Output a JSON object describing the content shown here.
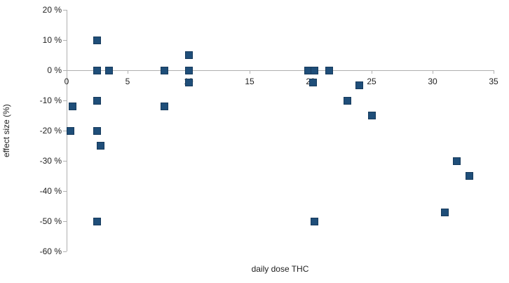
{
  "chart_data": {
    "type": "scatter",
    "title": "",
    "xlabel": "daily dose THC",
    "ylabel": "effect size (%)",
    "xlim": [
      0,
      35
    ],
    "ylim": [
      -60,
      20
    ],
    "x_ticks": [
      0,
      5,
      10,
      15,
      20,
      25,
      30,
      35
    ],
    "y_ticks": [
      20,
      10,
      0,
      -10,
      -20,
      -30,
      -40,
      -50,
      -60
    ],
    "y_tick_suffix": " %",
    "grid": false,
    "legend": "none",
    "axis_color": "#b0b0b0",
    "text_color": "#222222",
    "marker": {
      "shape": "square",
      "size": 11,
      "fill": "#1F4E79",
      "border": "#163A5C"
    },
    "points": [
      {
        "x": 0.5,
        "y": -12
      },
      {
        "x": 0.3,
        "y": -20
      },
      {
        "x": 2.5,
        "y": 10
      },
      {
        "x": 2.5,
        "y": 0
      },
      {
        "x": 2.5,
        "y": -10
      },
      {
        "x": 2.5,
        "y": -20
      },
      {
        "x": 2.8,
        "y": -25
      },
      {
        "x": 2.5,
        "y": -50
      },
      {
        "x": 3.5,
        "y": 0
      },
      {
        "x": 8,
        "y": 0
      },
      {
        "x": 8,
        "y": -12
      },
      {
        "x": 10,
        "y": 5
      },
      {
        "x": 10,
        "y": 0
      },
      {
        "x": 10,
        "y": -4
      },
      {
        "x": 19.8,
        "y": 0
      },
      {
        "x": 20.3,
        "y": 0
      },
      {
        "x": 20.2,
        "y": -4
      },
      {
        "x": 21.5,
        "y": 0
      },
      {
        "x": 20.3,
        "y": -50
      },
      {
        "x": 23,
        "y": -10
      },
      {
        "x": 24,
        "y": -5
      },
      {
        "x": 25,
        "y": -15
      },
      {
        "x": 31,
        "y": -47
      },
      {
        "x": 32,
        "y": -30
      },
      {
        "x": 33,
        "y": -35
      }
    ]
  }
}
